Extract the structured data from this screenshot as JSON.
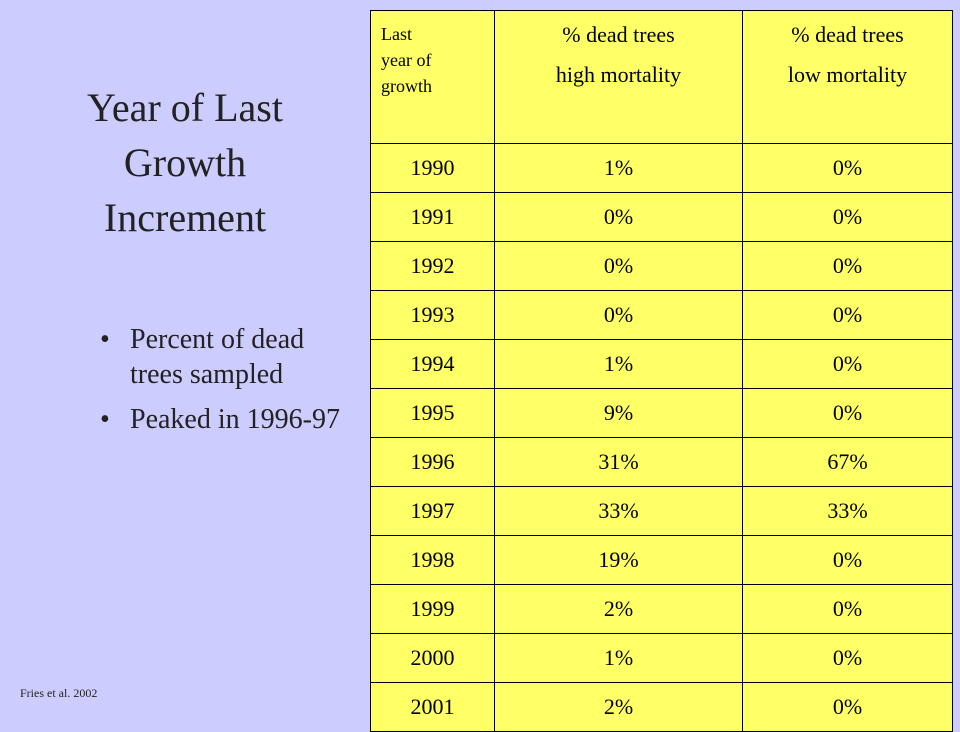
{
  "title_lines": [
    "Year of Last",
    "Growth",
    "Increment"
  ],
  "bullets": [
    {
      "text": "Percent of dead trees sampled"
    },
    {
      "text": "Peaked in 1996-97"
    }
  ],
  "citation": "Fries et al. 2002",
  "table": {
    "headers": [
      {
        "lines": [
          "Last",
          "year of",
          "growth"
        ]
      },
      {
        "lines": [
          "% dead  trees",
          "high mortality"
        ]
      },
      {
        "lines": [
          "% dead  trees",
          "low mortality"
        ]
      }
    ],
    "rows": [
      [
        "1990",
        "1%",
        "0%"
      ],
      [
        "1991",
        "0%",
        "0%"
      ],
      [
        "1992",
        "0%",
        "0%"
      ],
      [
        "1993",
        "0%",
        "0%"
      ],
      [
        "1994",
        "1%",
        "0%"
      ],
      [
        "1995",
        "9%",
        "0%"
      ],
      [
        "1996",
        "31%",
        "67%"
      ],
      [
        "1997",
        "33%",
        "33%"
      ],
      [
        "1998",
        "19%",
        "0%"
      ],
      [
        "1999",
        "2%",
        "0%"
      ],
      [
        "2000",
        "1%",
        "0%"
      ],
      [
        "2001",
        "2%",
        "0%"
      ]
    ]
  },
  "colors": {
    "background": "#ccccff",
    "table_fill": "#ffff66"
  }
}
